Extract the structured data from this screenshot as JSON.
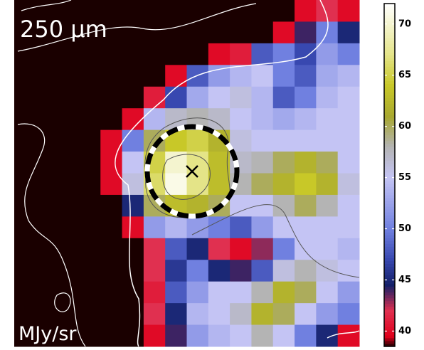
{
  "chart_data": {
    "type": "heatmap",
    "title": "250 μm",
    "unit_label": "MJy/sr",
    "values": [
      [
        36,
        36,
        36,
        36,
        36,
        36,
        36,
        36,
        36,
        36,
        36,
        36,
        36,
        40,
        42,
        40
      ],
      [
        36,
        36,
        36,
        36,
        36,
        36,
        36,
        36,
        36,
        36,
        36,
        36,
        40,
        44,
        50,
        45
      ],
      [
        36,
        36,
        36,
        36,
        36,
        36,
        36,
        36,
        36,
        40,
        41,
        48,
        50,
        47,
        52,
        50
      ],
      [
        36,
        36,
        36,
        36,
        36,
        36,
        36,
        40,
        48,
        52,
        54,
        55,
        50,
        48,
        53,
        54
      ],
      [
        36,
        36,
        36,
        36,
        36,
        36,
        41,
        47,
        53,
        55,
        56,
        54,
        48,
        50,
        54,
        55
      ],
      [
        36,
        36,
        36,
        36,
        36,
        40,
        54,
        57,
        58,
        57,
        55,
        54,
        53,
        54,
        55,
        55
      ],
      [
        36,
        36,
        36,
        36,
        40,
        50,
        60,
        64,
        65,
        62,
        56,
        55,
        55,
        55,
        55,
        55
      ],
      [
        36,
        36,
        36,
        36,
        40,
        55,
        65,
        70,
        67,
        63,
        57,
        58,
        60,
        62,
        60,
        55
      ],
      [
        36,
        36,
        36,
        36,
        40,
        56,
        66,
        71,
        67,
        63,
        58,
        60,
        62,
        64,
        62,
        56
      ],
      [
        36,
        36,
        36,
        36,
        36,
        45,
        60,
        63,
        62,
        60,
        55,
        55,
        58,
        60,
        58,
        55
      ],
      [
        36,
        36,
        36,
        36,
        36,
        40,
        52,
        54,
        52,
        50,
        48,
        52,
        55,
        55,
        55,
        55
      ],
      [
        36,
        36,
        36,
        36,
        36,
        36,
        42,
        48,
        45,
        42,
        40,
        43,
        50,
        55,
        55,
        54
      ],
      [
        36,
        36,
        36,
        36,
        36,
        36,
        42,
        46,
        50,
        45,
        44,
        48,
        56,
        58,
        56,
        55
      ],
      [
        36,
        36,
        36,
        36,
        36,
        36,
        41,
        48,
        52,
        55,
        55,
        58,
        62,
        60,
        55,
        52
      ],
      [
        36,
        36,
        36,
        36,
        36,
        36,
        42,
        45,
        54,
        55,
        57,
        62,
        60,
        55,
        52,
        50
      ],
      [
        36,
        36,
        36,
        36,
        36,
        36,
        40,
        44,
        52,
        54,
        55,
        58,
        55,
        50,
        45,
        40
      ]
    ],
    "zlim": [
      38.5,
      72
    ],
    "zticks": [
      40,
      45,
      50,
      55,
      60,
      65,
      70
    ],
    "colormap": [
      [
        38.5,
        "#1a0000"
      ],
      [
        39.5,
        "#e0001c"
      ],
      [
        42,
        "#e03050"
      ],
      [
        44.5,
        "#142068"
      ],
      [
        47,
        "#3848b0"
      ],
      [
        50,
        "#7080e0"
      ],
      [
        55,
        "#c4c4f4"
      ],
      [
        58,
        "#b4b4b4"
      ],
      [
        61,
        "#a8a830"
      ],
      [
        64,
        "#c8c828"
      ],
      [
        67,
        "#e4e488"
      ],
      [
        72,
        "#ffffff"
      ]
    ]
  }
}
